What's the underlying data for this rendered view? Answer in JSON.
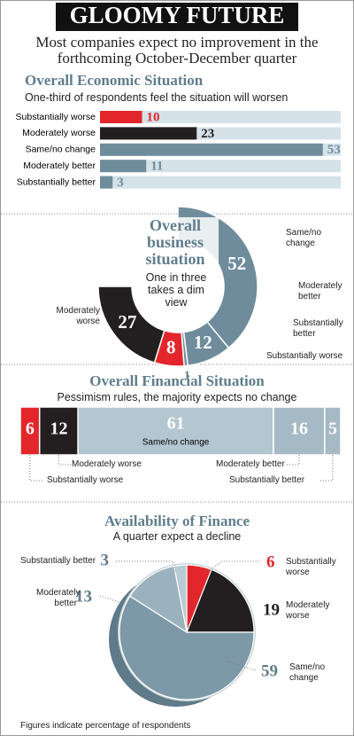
{
  "header": {
    "title": "GLOOMY FUTURE",
    "subtitle": "Most companies expect no improvement in the forthcoming October-December quarter"
  },
  "chart_data": [
    {
      "type": "bar",
      "title": "Overall Economic Situation",
      "subtitle": "One-third of respondents feel the situation will worsen",
      "categories": [
        "Substantially worse",
        "Moderately worse",
        "Same/no change",
        "Moderately better",
        "Substantially better"
      ],
      "values": [
        10,
        23,
        53,
        11,
        3
      ],
      "colors": [
        "#e3262b",
        "#231f20",
        "#6f8c9c",
        "#6f8c9c",
        "#6f8c9c"
      ]
    },
    {
      "type": "donut",
      "title": "Overall business situation",
      "subtitle": "One in three takes a dim view",
      "categories": [
        "Same/no change",
        "Moderately better",
        "Substantially better",
        "Substantially worse",
        "Moderately worse"
      ],
      "values": [
        52,
        12,
        1,
        8,
        27
      ],
      "colors": [
        "#6f8c9c",
        "#6f8c9c",
        "#6f8c9c",
        "#e3262b",
        "#231f20"
      ]
    },
    {
      "type": "stacked-bar",
      "title": "Overall Financial Situation",
      "subtitle": "Pessimism rules, the majority expects no change",
      "categories": [
        "Substantially worse",
        "Moderately worse",
        "Same/no change",
        "Moderately better",
        "Substantially better"
      ],
      "values": [
        6,
        12,
        61,
        16,
        5
      ],
      "colors": [
        "#e3262b",
        "#231f20",
        "#b4c6cf",
        "#a6bac5",
        "#a6bac5"
      ]
    },
    {
      "type": "pie",
      "title": "Availability of Finance",
      "subtitle": "A quarter expect a decline",
      "categories": [
        "Substantially worse",
        "Moderately worse",
        "Same/no change",
        "Moderately better",
        "Substantially better"
      ],
      "values": [
        6,
        19,
        59,
        13,
        3
      ],
      "colors": [
        "#e3262b",
        "#231f20",
        "#7d98a6",
        "#9bb1bd",
        "#b9cad3"
      ]
    }
  ],
  "footnote": "Figures indicate percentage of respondents"
}
